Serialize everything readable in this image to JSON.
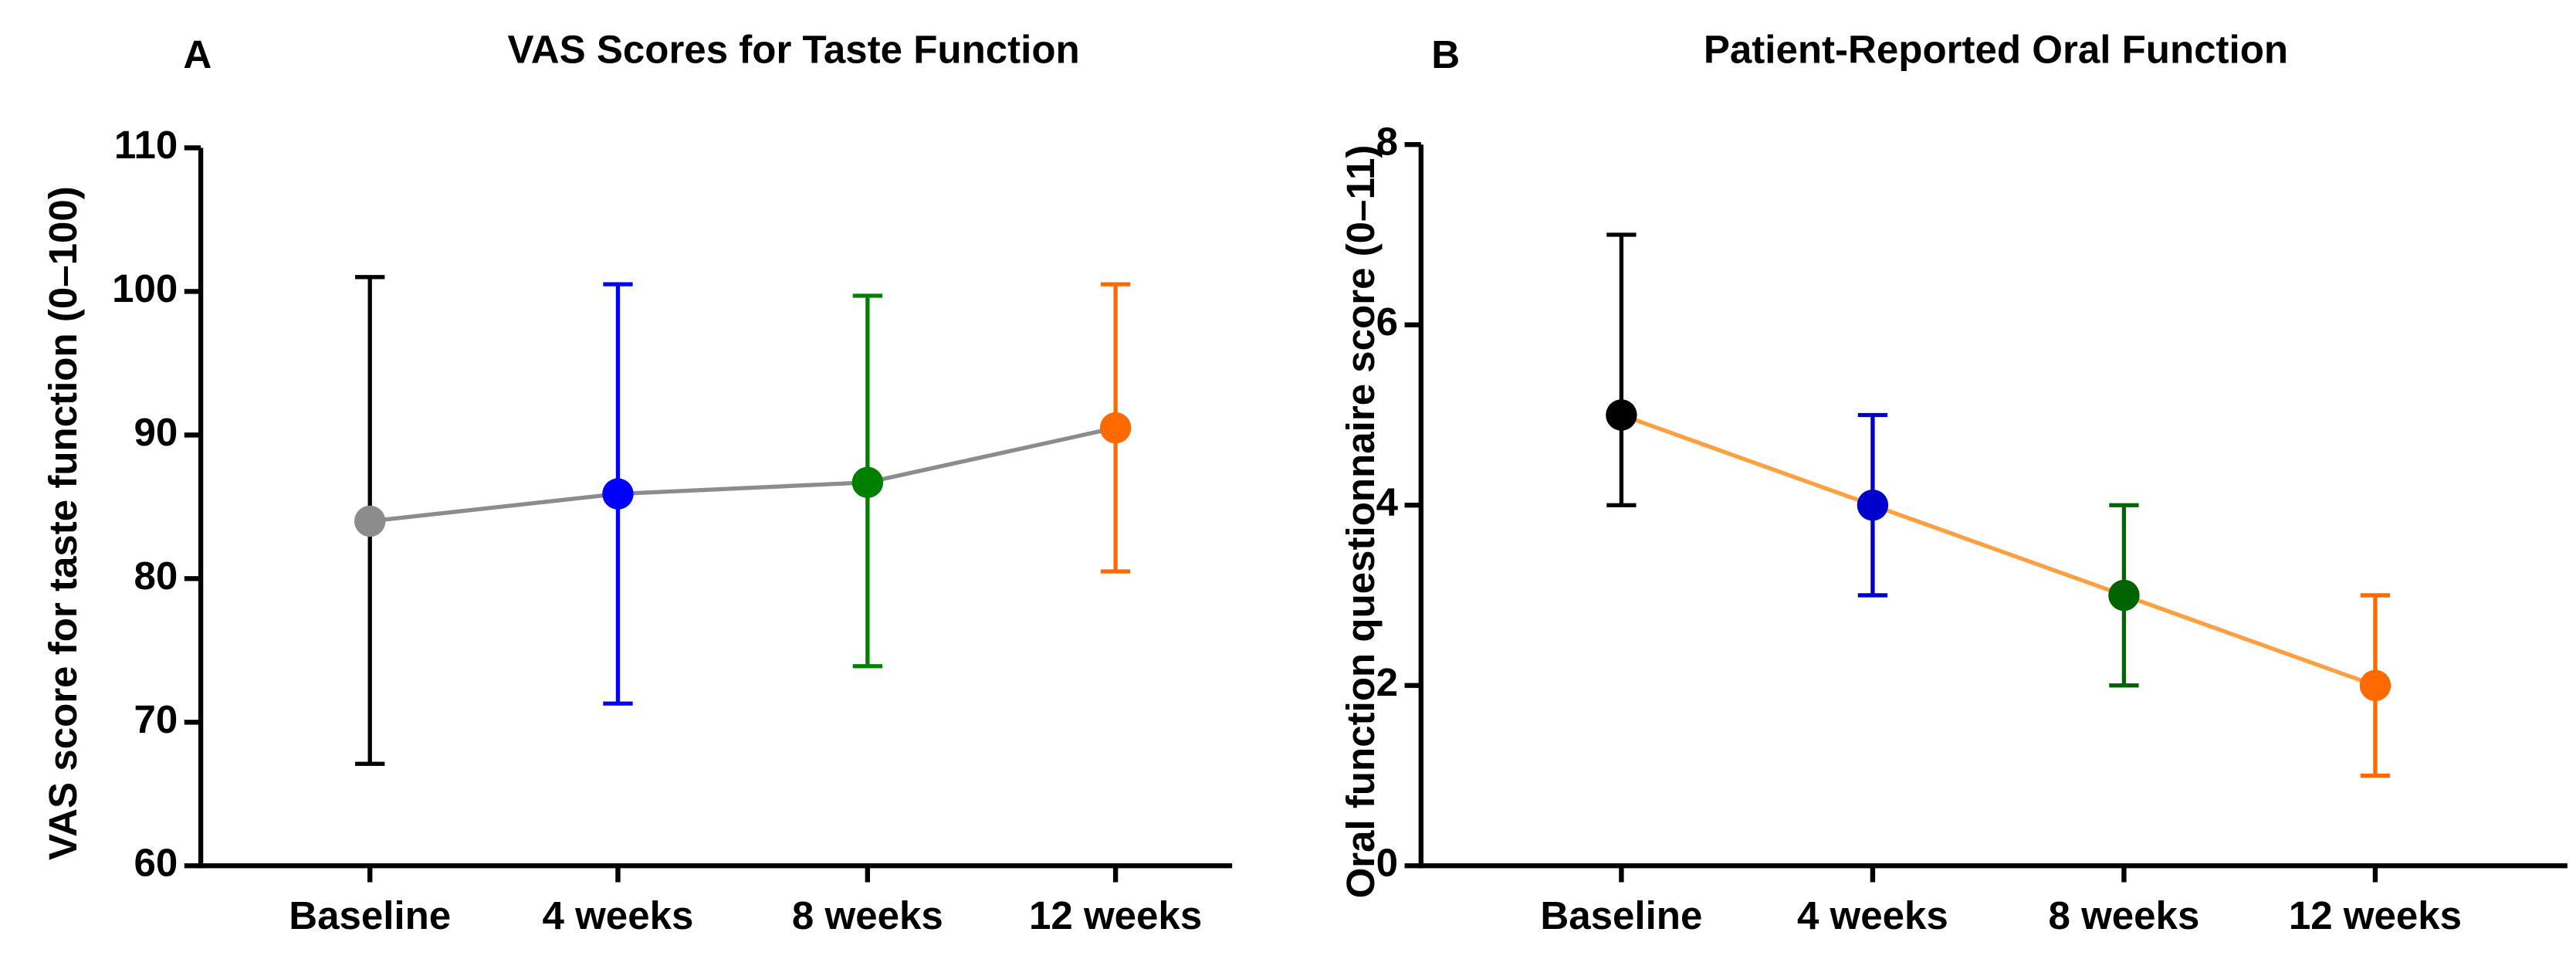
{
  "chart_data": [
    {
      "type": "line",
      "panel_label": "A",
      "title": "VAS Scores for Taste Function",
      "y_label": "VAS score for taste function (0–100)",
      "categories": [
        "Baseline",
        "4 weeks",
        "8 weeks",
        "12 weeks"
      ],
      "values": [
        84,
        85.9,
        86.7,
        90.5
      ],
      "lower": [
        67.1,
        71.3,
        73.9,
        80.5
      ],
      "upper": [
        101,
        100.5,
        99.7,
        100.5
      ],
      "line_color": "#8c8c8c",
      "point_colors": [
        "#8c8c8c",
        "#0000ff",
        "#008000",
        "#ff6a00"
      ],
      "error_colors": [
        "#000000",
        "#0000ff",
        "#008000",
        "#ff6a00"
      ],
      "ylim": [
        60,
        110
      ],
      "yticks": [
        60,
        70,
        80,
        90,
        100,
        110
      ]
    },
    {
      "type": "line",
      "panel_label": "B",
      "title": "Patient-Reported Oral Function",
      "y_label": "Oral function questionnaire score (0–11)",
      "categories": [
        "Baseline",
        "4 weeks",
        "8 weeks",
        "12 weeks"
      ],
      "values": [
        5,
        4,
        3,
        2
      ],
      "lower": [
        4,
        3,
        2,
        1
      ],
      "upper": [
        7,
        5,
        4,
        3
      ],
      "line_color": "#ffa040",
      "point_colors": [
        "#000000",
        "#0000cc",
        "#006400",
        "#ff6a00"
      ],
      "error_colors": [
        "#000000",
        "#0000cc",
        "#006400",
        "#ff6a00"
      ],
      "ylim": [
        0,
        8
      ],
      "yticks": [
        0,
        2,
        4,
        6,
        8
      ]
    }
  ]
}
